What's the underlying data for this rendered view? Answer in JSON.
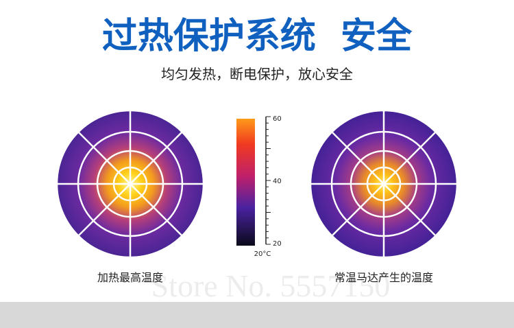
{
  "header": {
    "title": "过热保护系统  安全",
    "subtitle": "均匀发热，断电保护，放心安全"
  },
  "panels": [
    {
      "label": "加热最高温度"
    },
    {
      "label": "常温马达产生的温度"
    }
  ],
  "colorbar": {
    "ticks": [
      "60",
      "40",
      "20"
    ],
    "unit": "20°C"
  },
  "watermark": "Store No. 5557150"
}
